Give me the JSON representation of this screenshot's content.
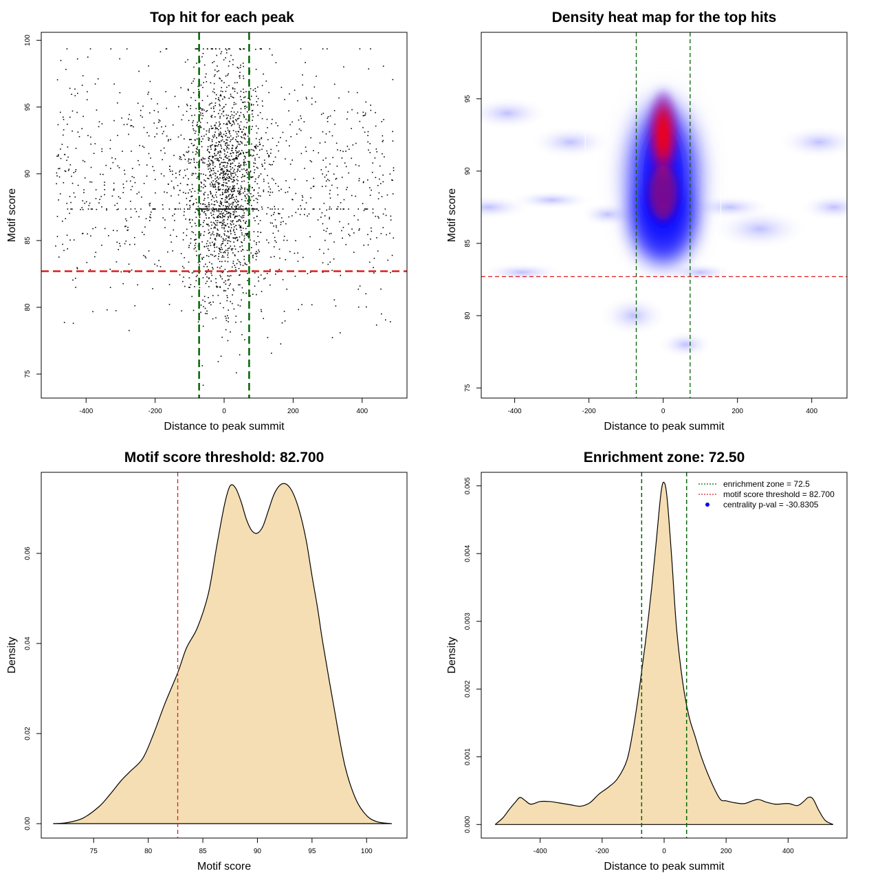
{
  "chart_data": [
    {
      "type": "scatter",
      "title": "Top hit for each peak",
      "xlabel": "Distance to peak summit",
      "ylabel": "Motif score",
      "xlim": [
        -530,
        530
      ],
      "ylim": [
        73.2,
        100.6
      ],
      "xticks": [
        -400,
        -200,
        0,
        200,
        400
      ],
      "yticks": [
        75,
        80,
        85,
        90,
        95,
        100
      ],
      "enrichment_zone_lines_x": [
        -72.5,
        72.5
      ],
      "threshold_line_y": 82.7,
      "colors": {
        "points": "#000000",
        "zone": "#006400",
        "threshold": "#dd1c1c"
      },
      "point_distribution": {
        "count": 2600,
        "center_x": 0,
        "center_sd_x": 55,
        "uniform_range_x": [
          -490,
          490
        ],
        "y_mean": 89.5,
        "y_sd": 4.6
      }
    },
    {
      "type": "heatmap",
      "title": "Density heat map for the top hits",
      "xlabel": "Distance to peak summit",
      "ylabel": "Motif score",
      "xlim": [
        -490,
        495
      ],
      "ylim": [
        74.3,
        99.6
      ],
      "xticks": [
        -400,
        -200,
        0,
        200,
        400
      ],
      "yticks": [
        75,
        80,
        85,
        90,
        95
      ],
      "enrichment_zone_lines_x": [
        -72.5,
        72.5
      ],
      "threshold_line_y": 82.7,
      "color_scale": [
        "#ffffff",
        "#0000ff",
        "#ff0000"
      ],
      "peak": {
        "x": 0,
        "y": 92.5
      },
      "colors": {
        "zone": "#006400",
        "threshold": "#dd1c1c"
      }
    },
    {
      "type": "area",
      "title": "Motif score threshold: 82.700",
      "xlabel": "Motif score",
      "ylabel": "Density",
      "xlim": [
        70.2,
        103.7
      ],
      "ylim": [
        -0.0032,
        0.078
      ],
      "xticks": [
        75,
        80,
        85,
        90,
        95,
        100
      ],
      "yticks": [
        0.0,
        0.02,
        0.04,
        0.06
      ],
      "ytick_labels": [
        "0.00",
        "0.02",
        "0.04",
        "0.06"
      ],
      "threshold_line_x": 82.7,
      "x": [
        71.3,
        72.5,
        74,
        75.5,
        76.5,
        77.5,
        78.3,
        79.5,
        80.5,
        81.5,
        82.7,
        83.5,
        84.5,
        85.5,
        86.3,
        87,
        87.5,
        88,
        88.5,
        89,
        89.5,
        90,
        90.5,
        91,
        91.5,
        92,
        92.5,
        93,
        93.5,
        94,
        94.5,
        95,
        95.5,
        96,
        97,
        98,
        99,
        100,
        101,
        102.3
      ],
      "values": [
        0.0,
        0.0002,
        0.0012,
        0.0038,
        0.0065,
        0.0095,
        0.0115,
        0.0145,
        0.02,
        0.0265,
        0.0335,
        0.039,
        0.0435,
        0.051,
        0.062,
        0.071,
        0.075,
        0.0745,
        0.0715,
        0.0675,
        0.065,
        0.0645,
        0.066,
        0.0695,
        0.073,
        0.075,
        0.0755,
        0.0745,
        0.072,
        0.068,
        0.0625,
        0.055,
        0.048,
        0.04,
        0.026,
        0.013,
        0.0055,
        0.0018,
        0.0004,
        0.0
      ]
    },
    {
      "type": "area",
      "title": "Enrichment zone: 72.50",
      "xlabel": "Distance to peak summit",
      "ylabel": "Density",
      "xlim": [
        -590,
        590
      ],
      "ylim": [
        -0.0002,
        0.0052
      ],
      "xticks": [
        -400,
        -200,
        0,
        200,
        400
      ],
      "yticks": [
        0.0,
        0.001,
        0.002,
        0.003,
        0.004,
        0.005
      ],
      "ytick_labels": [
        "0.000",
        "0.001",
        "0.002",
        "0.003",
        "0.004",
        "0.005"
      ],
      "enrichment_zone_lines_x": [
        -72.5,
        72.5
      ],
      "x": [
        -545,
        -520,
        -500,
        -480,
        -465,
        -450,
        -430,
        -400,
        -370,
        -340,
        -300,
        -270,
        -240,
        -210,
        -180,
        -150,
        -120,
        -100,
        -80,
        -60,
        -40,
        -25,
        -10,
        0,
        10,
        25,
        40,
        60,
        80,
        100,
        120,
        150,
        180,
        200,
        230,
        260,
        300,
        330,
        360,
        400,
        430,
        450,
        465,
        480,
        500,
        520,
        545
      ],
      "values": [
        0.0,
        0.0001,
        0.00022,
        0.00033,
        0.0004,
        0.00036,
        0.0003,
        0.00034,
        0.00034,
        0.00032,
        0.00029,
        0.00027,
        0.00032,
        0.00045,
        0.00055,
        0.00068,
        0.00095,
        0.0014,
        0.002,
        0.0027,
        0.0035,
        0.0042,
        0.0049,
        0.00505,
        0.0048,
        0.0039,
        0.0029,
        0.0021,
        0.0016,
        0.0013,
        0.001,
        0.00065,
        0.00038,
        0.00035,
        0.00032,
        0.00031,
        0.00037,
        0.00033,
        0.0003,
        0.00031,
        0.00028,
        0.00034,
        0.0004,
        0.00038,
        0.0002,
        6e-05,
        0.0
      ],
      "legend": [
        {
          "label": "enrichment zone = 72.5",
          "color": "#006400",
          "kind": "dotted-line"
        },
        {
          "label": "motif score threshold = 82.700",
          "color": "#dd1c1c",
          "kind": "dotted-line"
        },
        {
          "label": "centrality p-val = -30.8305",
          "color": "#0000ff",
          "kind": "dot"
        }
      ],
      "legend_position": "top-right"
    }
  ]
}
